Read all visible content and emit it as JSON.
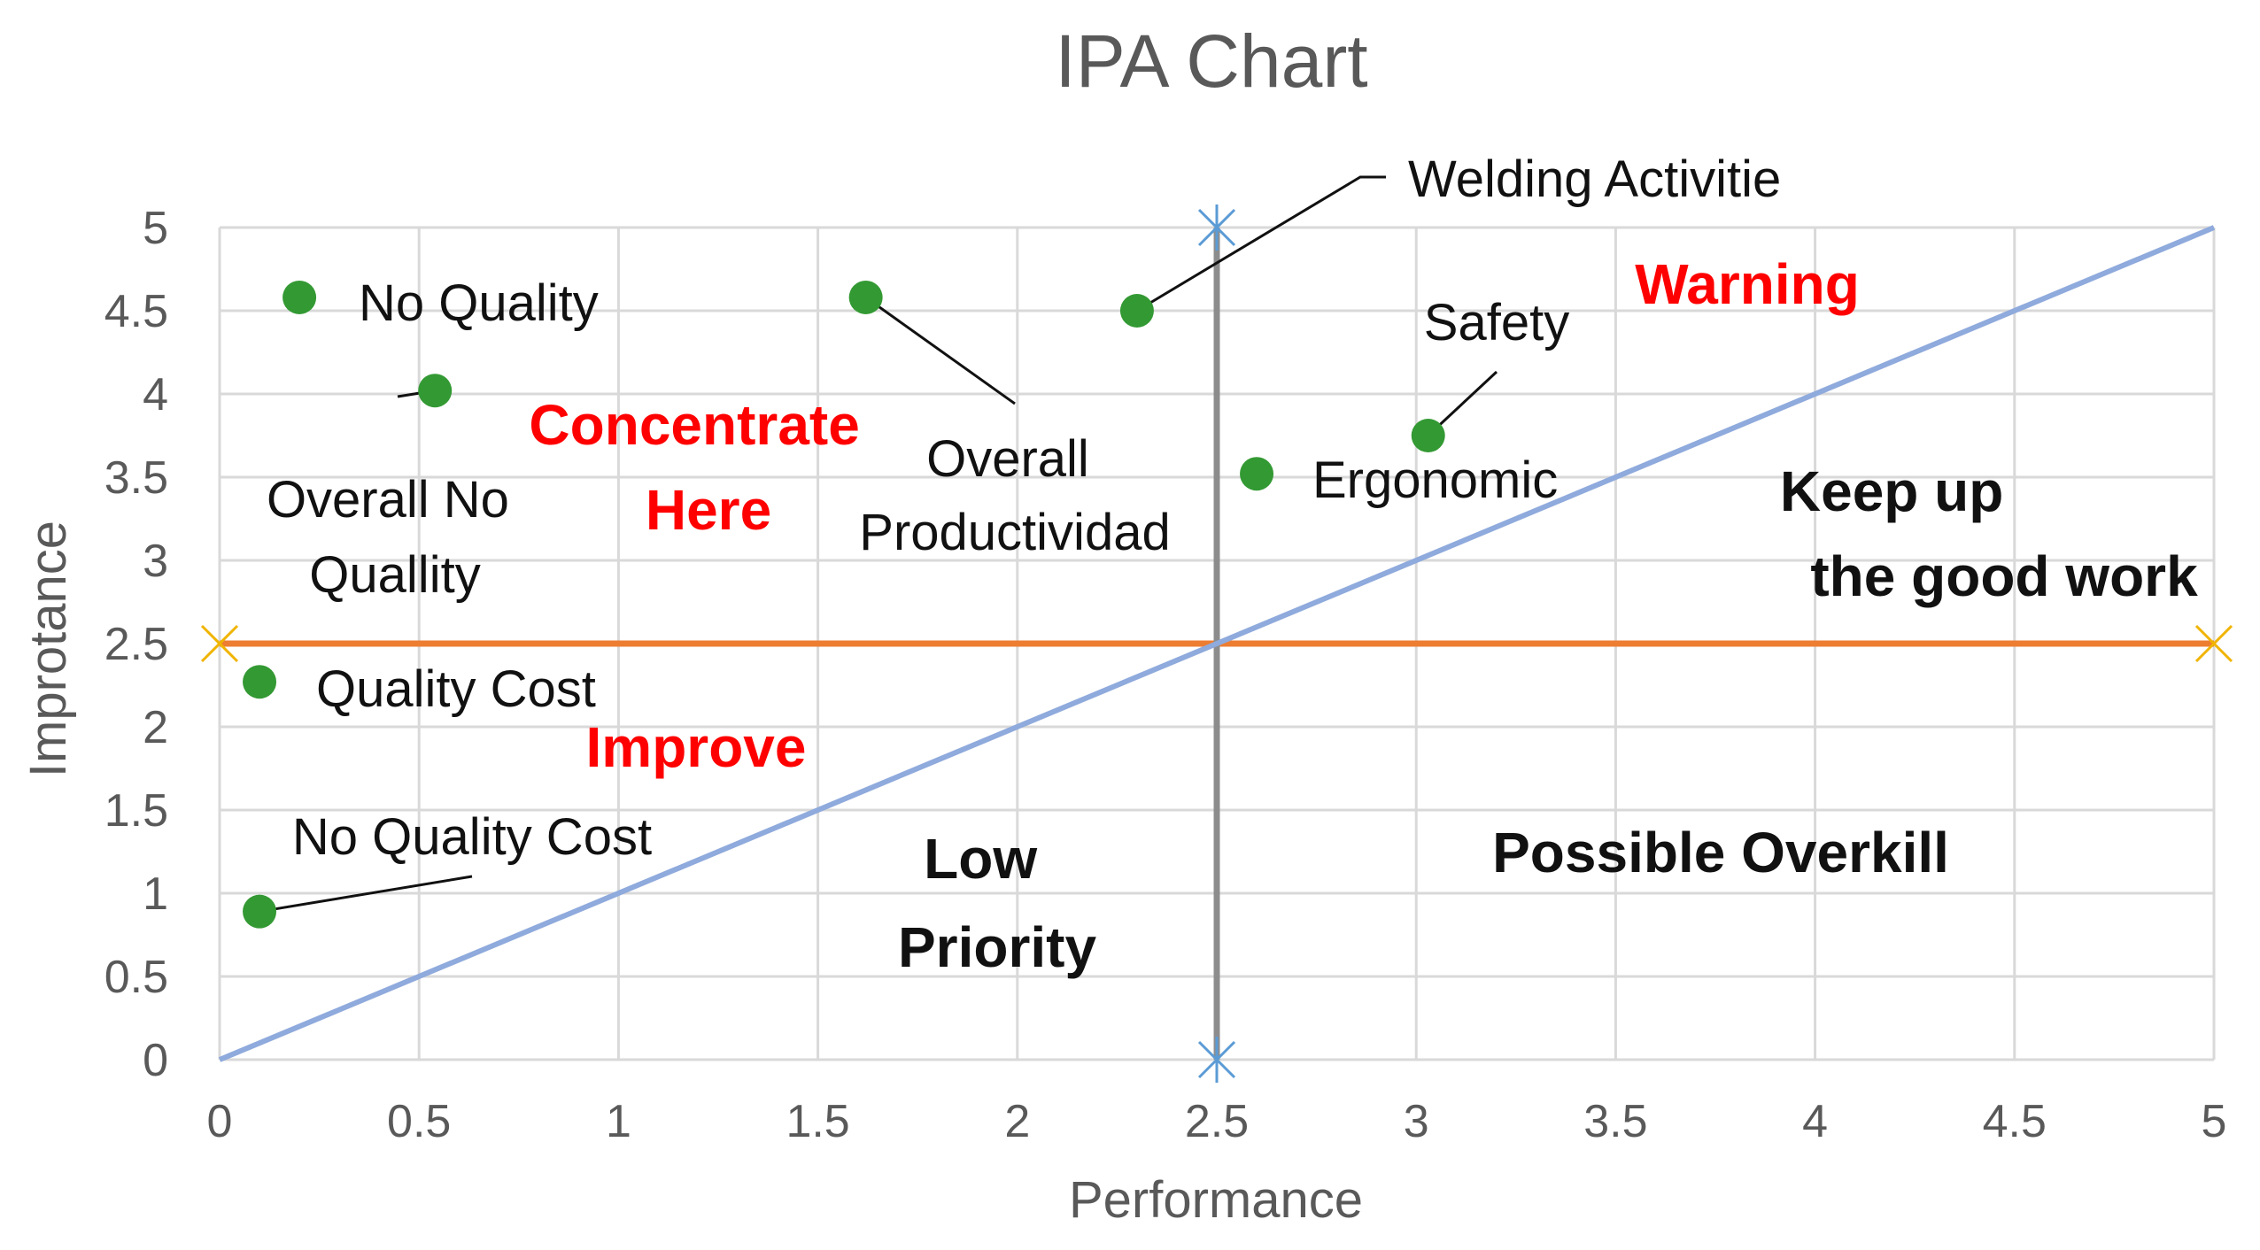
{
  "chart_data": {
    "type": "scatter",
    "title": "IPA Chart",
    "xlabel": "Performance",
    "ylabel": "Improtance",
    "xlim": [
      0,
      5
    ],
    "ylim": [
      0,
      5
    ],
    "xticks": [
      "0",
      "0.5",
      "1",
      "1.5",
      "2",
      "2.5",
      "3",
      "3.5",
      "4",
      "4.5",
      "5"
    ],
    "yticks": [
      "0",
      "0.5",
      "1",
      "1.5",
      "2",
      "2.5",
      "3",
      "3.5",
      "4",
      "4.5",
      "5"
    ],
    "grid": true,
    "points": [
      {
        "label": "No Quality",
        "x": 0.2,
        "y": 4.58
      },
      {
        "label": "Overall No Quallity",
        "x": 0.54,
        "y": 4.02
      },
      {
        "label": "Overall Productividad",
        "x": 1.62,
        "y": 4.58
      },
      {
        "label": "Welding Activitie",
        "x": 2.3,
        "y": 4.5
      },
      {
        "label": "Ergonomic",
        "x": 2.6,
        "y": 3.52
      },
      {
        "label": "Safety",
        "x": 3.03,
        "y": 3.75
      },
      {
        "label": "Quality Cost",
        "x": 0.1,
        "y": 2.27
      },
      {
        "label": "No Quality Cost",
        "x": 0.1,
        "y": 0.89
      }
    ],
    "reference_lines": [
      {
        "name": "Performance mean",
        "orientation": "vertical",
        "x": 2.5,
        "color": "#8c8c8c"
      },
      {
        "name": "Importance mean",
        "orientation": "horizontal",
        "y": 2.5,
        "color": "#ed7d31"
      },
      {
        "name": "Diagonal",
        "from": [
          0,
          0
        ],
        "to": [
          5,
          5
        ],
        "color": "#8faadc"
      }
    ],
    "quadrant_labels": {
      "concentrate": [
        "Concentrate",
        "Here"
      ],
      "improve": "Improve",
      "warning": "Warning",
      "keep_up": [
        "Keep up",
        "the good work"
      ],
      "low_priority": [
        "Low",
        "Priority"
      ],
      "overkill": "Possible Overkill"
    },
    "colors": {
      "point": "#339933",
      "grid": "#d9d9d9",
      "quadrant_red": "#ff0000"
    }
  }
}
